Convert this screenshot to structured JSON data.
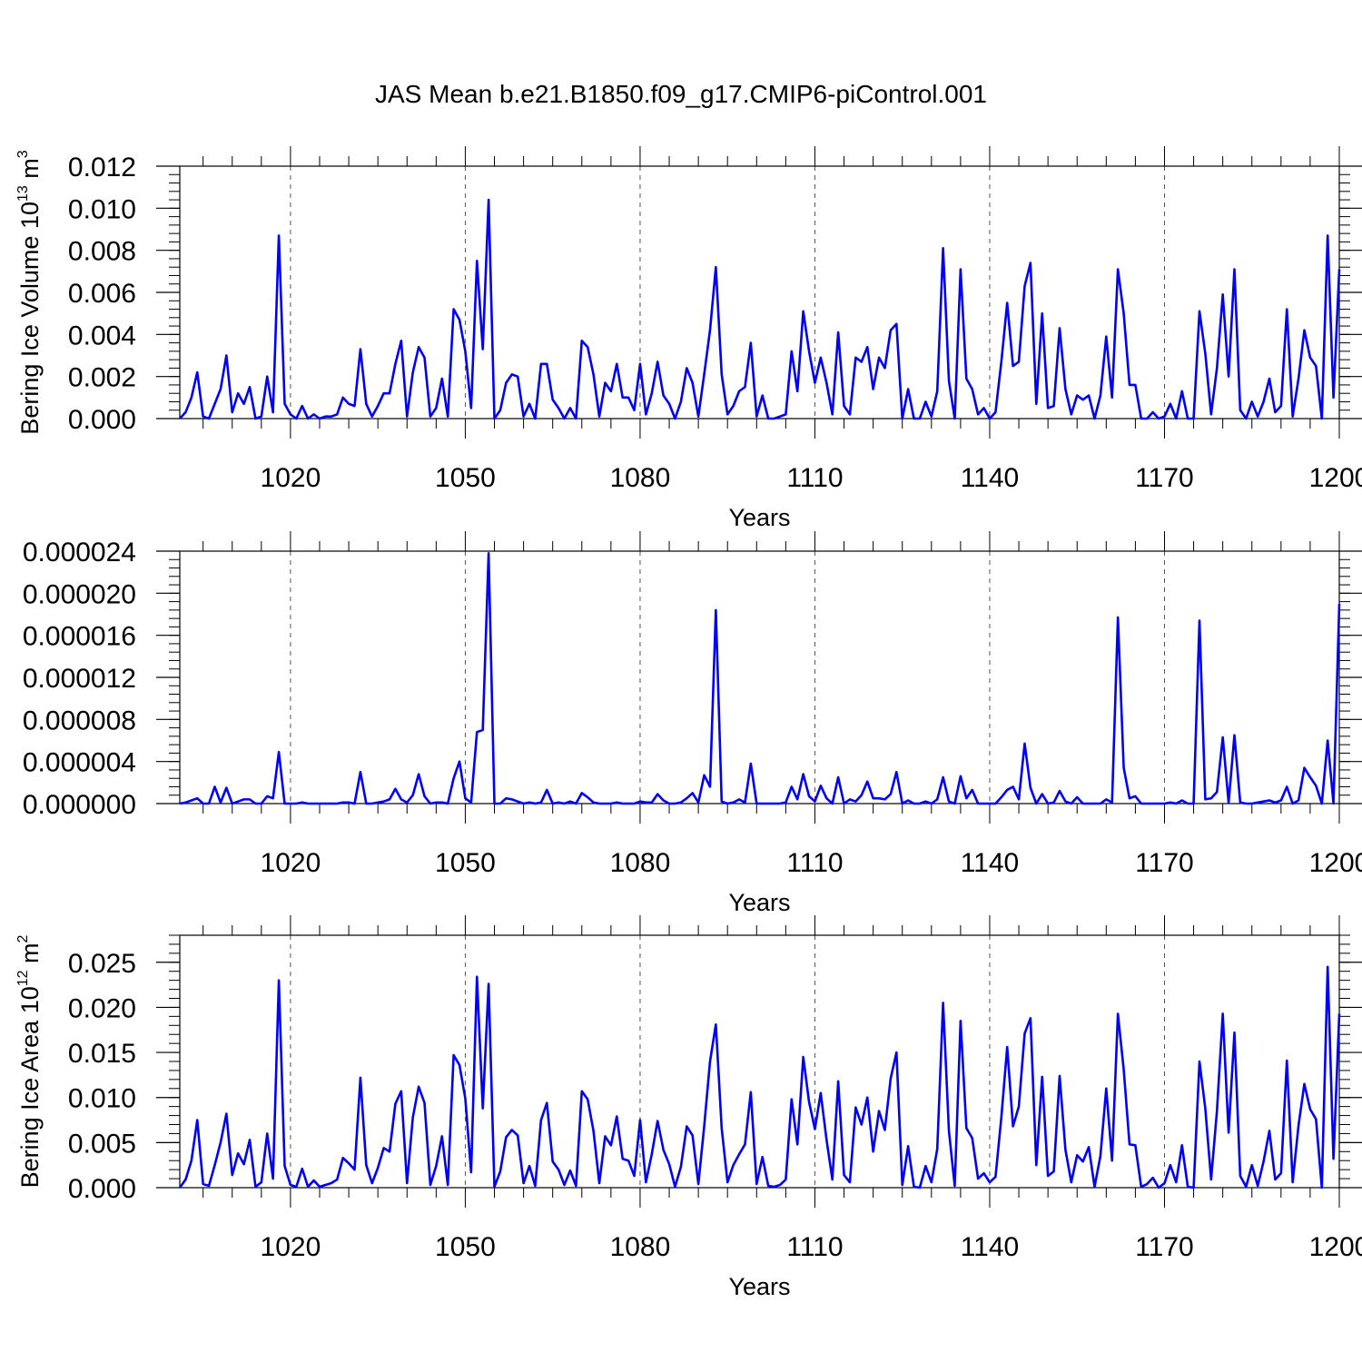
{
  "figure_title": "JAS Mean b.e21.B1850.f09_g17.CMIP6-piControl.001",
  "colors": {
    "line": "#0000ff",
    "axis": "#000000",
    "grid": "#555555"
  },
  "chart_data": [
    {
      "type": "line",
      "name": "ice-volume",
      "title": "",
      "xlabel": "Years",
      "ylabel_main": "Bering Ice Volume 10",
      "ylabel_sup": "13",
      "ylabel_unit": " m",
      "ylabel_unit_sup": "3",
      "xlim": [
        1001,
        1200
      ],
      "ylim": [
        0,
        0.012
      ],
      "yticks": [
        0.0,
        0.002,
        0.004,
        0.006,
        0.008,
        0.01,
        0.012
      ],
      "ytick_labels": [
        "0.000",
        "0.002",
        "0.004",
        "0.006",
        "0.008",
        "0.010",
        "0.012"
      ],
      "xticks": [
        1020,
        1050,
        1080,
        1110,
        1140,
        1170,
        1200
      ],
      "xtick_labels": [
        "1020",
        "1050",
        "1080",
        "1110",
        "1140",
        "1170",
        "1200"
      ],
      "gridlines_x": [
        1020,
        1050,
        1080,
        1110,
        1140,
        1170
      ],
      "x_start": 1001,
      "values": [
        0.0,
        0.0003,
        0.001,
        0.0022,
        0.0001,
        0.0,
        0.0007,
        0.0014,
        0.003,
        0.0003,
        0.0012,
        0.0007,
        0.0015,
        0.0,
        0.0001,
        0.002,
        0.0003,
        0.0087,
        0.0007,
        0.0002,
        0.0,
        0.0006,
        0.0,
        0.0002,
        0.0,
        0.0001,
        0.0001,
        0.0002,
        0.001,
        0.0007,
        0.0006,
        0.0033,
        0.0007,
        0.0001,
        0.0006,
        0.0012,
        0.0012,
        0.0026,
        0.0037,
        0.0001,
        0.0022,
        0.0034,
        0.0029,
        0.0001,
        0.0005,
        0.0019,
        0.0001,
        0.0052,
        0.0047,
        0.0032,
        0.0005,
        0.0075,
        0.0033,
        0.0104,
        0.0,
        0.0004,
        0.0017,
        0.0021,
        0.002,
        0.0001,
        0.0007,
        0.0,
        0.0026,
        0.0026,
        0.0009,
        0.0005,
        0.0,
        0.0005,
        0.0,
        0.0037,
        0.0034,
        0.0021,
        0.0001,
        0.0017,
        0.0013,
        0.0026,
        0.001,
        0.001,
        0.0004,
        0.0026,
        0.0002,
        0.0012,
        0.0027,
        0.0011,
        0.0007,
        0.0,
        0.0008,
        0.0024,
        0.0017,
        0.0001,
        0.0021,
        0.0042,
        0.0072,
        0.0021,
        0.0002,
        0.0006,
        0.0013,
        0.0015,
        0.0036,
        0.0001,
        0.0011,
        0.0,
        0.0,
        0.0001,
        0.0002,
        0.0032,
        0.0013,
        0.0051,
        0.0032,
        0.0017,
        0.0029,
        0.0017,
        0.0002,
        0.0041,
        0.0006,
        0.0002,
        0.0029,
        0.0027,
        0.0034,
        0.0014,
        0.0029,
        0.0024,
        0.0042,
        0.0045,
        0.0,
        0.0014,
        0.0,
        0.0,
        0.0008,
        0.0001,
        0.0013,
        0.0081,
        0.0018,
        0.0,
        0.0071,
        0.0019,
        0.0014,
        0.0002,
        0.0005,
        0.0,
        0.0003,
        0.0027,
        0.0055,
        0.0025,
        0.0027,
        0.0063,
        0.0074,
        0.0007,
        0.005,
        0.0005,
        0.0006,
        0.0043,
        0.0014,
        0.0002,
        0.0011,
        0.0009,
        0.0011,
        0.0,
        0.0011,
        0.0039,
        0.001,
        0.0071,
        0.005,
        0.0016,
        0.0016,
        0.0,
        0.0,
        0.0003,
        0.0,
        0.0001,
        0.0007,
        0.0,
        0.0013,
        0.0,
        0.0,
        0.0051,
        0.0031,
        0.0002,
        0.0024,
        0.0059,
        0.002,
        0.0071,
        0.0004,
        0.0,
        0.0008,
        0.0001,
        0.0008,
        0.0019,
        0.0003,
        0.0006,
        0.0052,
        0.0001,
        0.0019,
        0.0042,
        0.0029,
        0.0025,
        0.0,
        0.0087,
        0.001,
        0.0071
      ]
    },
    {
      "type": "line",
      "name": "ice-secondary",
      "title": "",
      "xlabel": "Years",
      "ylabel_main": "",
      "ylabel_sup": "",
      "ylabel_unit": "",
      "ylabel_unit_sup": "",
      "xlim": [
        1001,
        1200
      ],
      "ylim": [
        0,
        2.4e-05
      ],
      "yticks": [
        0.0,
        4e-06,
        8e-06,
        1.2e-05,
        1.6e-05,
        2e-05,
        2.4e-05
      ],
      "ytick_labels": [
        "0.000000",
        "0.000004",
        "0.000008",
        "0.000012",
        "0.000016",
        "0.000020",
        "0.000024"
      ],
      "xticks": [
        1020,
        1050,
        1080,
        1110,
        1140,
        1170,
        1200
      ],
      "xtick_labels": [
        "1020",
        "1050",
        "1080",
        "1110",
        "1140",
        "1170",
        "1200"
      ],
      "gridlines_x": [
        1020,
        1050,
        1080,
        1110,
        1140,
        1170
      ],
      "x_start": 1001,
      "values": [
        0.0,
        1e-07,
        3e-07,
        5e-07,
        0.0,
        0.0,
        1.6e-06,
        1e-07,
        1.5e-06,
        0.0,
        2e-07,
        4e-07,
        4e-07,
        0.0,
        0.0,
        7e-07,
        5e-07,
        4.9e-06,
        0.0,
        0.0,
        0.0,
        1e-07,
        0.0,
        0.0,
        0.0,
        0.0,
        0.0,
        0.0,
        1e-07,
        1e-07,
        0.0,
        3e-06,
        0.0,
        0.0,
        1e-07,
        2e-07,
        4e-07,
        1.4e-06,
        4e-07,
        1e-07,
        8e-07,
        2.8e-06,
        7e-07,
        0.0,
        1e-07,
        1e-07,
        0.0,
        2.4e-06,
        4e-06,
        5e-07,
        1e-07,
        6.8e-06,
        7e-06,
        2.38e-05,
        0.0,
        0.0,
        5e-07,
        4e-07,
        2e-07,
        0.0,
        1e-07,
        0.0,
        1e-07,
        1.3e-06,
        0.0,
        1e-07,
        0.0,
        2e-07,
        0.0,
        1e-06,
        6e-07,
        1e-07,
        0.0,
        0.0,
        0.0,
        1e-07,
        0.0,
        0.0,
        0.0,
        2e-07,
        1e-07,
        1e-07,
        9e-07,
        3e-07,
        0.0,
        0.0,
        1e-07,
        5e-07,
        1e-06,
        1e-07,
        2.7e-06,
        1.6e-06,
        1.84e-05,
        2e-07,
        0.0,
        1e-07,
        4e-07,
        1e-07,
        3.8e-06,
        0.0,
        0.0,
        0.0,
        0.0,
        0.0,
        1e-07,
        1.6e-06,
        4e-07,
        2.8e-06,
        7e-07,
        2e-07,
        1.7e-06,
        5e-07,
        0.0,
        2.5e-06,
        0.0,
        4e-07,
        2e-07,
        8e-07,
        2.1e-06,
        5e-07,
        5e-07,
        4e-07,
        9e-07,
        3e-06,
        0.0,
        3e-07,
        0.0,
        0.0,
        2e-07,
        0.0,
        4e-07,
        2.5e-06,
        2e-07,
        0.0,
        2.6e-06,
        5e-07,
        1.3e-06,
        0.0,
        0.0,
        0.0,
        0.0,
        6e-07,
        1.3e-06,
        1.6e-06,
        4e-07,
        5.7e-06,
        1.5e-06,
        0.0,
        9e-07,
        0.0,
        1e-07,
        1.2e-06,
        2e-07,
        0.0,
        6e-07,
        0.0,
        0.0,
        0.0,
        0.0,
        4e-07,
        1e-07,
        1.77e-05,
        3.4e-06,
        5e-07,
        7e-07,
        0.0,
        0.0,
        0.0,
        0.0,
        0.0,
        1e-07,
        0.0,
        3e-07,
        0.0,
        0.0,
        1.74e-05,
        4e-07,
        5e-07,
        1.1e-06,
        6.3e-06,
        1e-07,
        6.5e-06,
        1e-07,
        0.0,
        0.0,
        1e-07,
        2e-07,
        3e-07,
        1e-07,
        3e-07,
        1.6e-06,
        0.0,
        3e-07,
        3.4e-06,
        2.5e-06,
        1.7e-06,
        0.0,
        6e-06,
        0.0,
        1.9e-05
      ]
    },
    {
      "type": "line",
      "name": "ice-area",
      "title": "",
      "xlabel": "Years",
      "ylabel_main": "Bering Ice Area 10",
      "ylabel_sup": "12",
      "ylabel_unit": " m",
      "ylabel_unit_sup": "2",
      "xlim": [
        1001,
        1200
      ],
      "ylim": [
        0,
        0.028
      ],
      "yticks": [
        0.0,
        0.005,
        0.01,
        0.015,
        0.02,
        0.025
      ],
      "ytick_labels": [
        "0.000",
        "0.005",
        "0.010",
        "0.015",
        "0.020",
        "0.025"
      ],
      "xticks": [
        1020,
        1050,
        1080,
        1110,
        1140,
        1170,
        1200
      ],
      "xtick_labels": [
        "1020",
        "1050",
        "1080",
        "1110",
        "1140",
        "1170",
        "1200"
      ],
      "gridlines_x": [
        1020,
        1050,
        1080,
        1110,
        1140,
        1170
      ],
      "x_start": 1001,
      "values": [
        0.0,
        0.0009,
        0.003,
        0.0075,
        0.0004,
        0.0002,
        0.0025,
        0.005,
        0.0082,
        0.0014,
        0.0038,
        0.0026,
        0.0053,
        0.0001,
        0.0006,
        0.006,
        0.001,
        0.023,
        0.0024,
        0.0003,
        0.0001,
        0.0021,
        0.0001,
        0.0008,
        0.0001,
        0.0003,
        0.0005,
        0.0009,
        0.0033,
        0.0027,
        0.002,
        0.0122,
        0.0025,
        0.0005,
        0.0022,
        0.0044,
        0.004,
        0.0093,
        0.0107,
        0.0005,
        0.0078,
        0.0112,
        0.0094,
        0.0003,
        0.0024,
        0.0057,
        0.0003,
        0.0147,
        0.0136,
        0.0099,
        0.0017,
        0.0234,
        0.0088,
        0.0226,
        0.0001,
        0.0018,
        0.0056,
        0.0064,
        0.0058,
        0.0005,
        0.0024,
        0.0002,
        0.0075,
        0.0094,
        0.0029,
        0.002,
        0.0003,
        0.0019,
        0.0002,
        0.0107,
        0.0098,
        0.0063,
        0.0005,
        0.0057,
        0.0047,
        0.0079,
        0.0032,
        0.003,
        0.0013,
        0.0075,
        0.0006,
        0.0037,
        0.0074,
        0.0042,
        0.0026,
        0.0001,
        0.0023,
        0.0068,
        0.0058,
        0.0004,
        0.0068,
        0.014,
        0.0181,
        0.0066,
        0.0006,
        0.0025,
        0.0037,
        0.0048,
        0.0106,
        0.0004,
        0.0034,
        0.0002,
        0.0001,
        0.0003,
        0.0009,
        0.0098,
        0.0048,
        0.0145,
        0.0095,
        0.0065,
        0.0105,
        0.0053,
        0.0009,
        0.0118,
        0.0014,
        0.0006,
        0.0089,
        0.007,
        0.01,
        0.004,
        0.0085,
        0.0064,
        0.0121,
        0.015,
        0.0003,
        0.0046,
        0.0001,
        0.0,
        0.0024,
        0.0006,
        0.0043,
        0.0205,
        0.0063,
        0.0002,
        0.0185,
        0.0066,
        0.0055,
        0.001,
        0.0016,
        0.0006,
        0.0012,
        0.0078,
        0.0156,
        0.0068,
        0.009,
        0.0171,
        0.0188,
        0.0025,
        0.0123,
        0.0013,
        0.0018,
        0.0124,
        0.0042,
        0.0006,
        0.0036,
        0.0029,
        0.0045,
        0.0001,
        0.0035,
        0.011,
        0.003,
        0.0193,
        0.0131,
        0.0048,
        0.0047,
        0.0001,
        0.0004,
        0.0011,
        0.0,
        0.0005,
        0.0025,
        0.0006,
        0.0047,
        0.0001,
        0.0,
        0.014,
        0.0088,
        0.0009,
        0.0085,
        0.0193,
        0.0061,
        0.0172,
        0.0013,
        0.0001,
        0.0025,
        0.0002,
        0.0029,
        0.0063,
        0.0009,
        0.0016,
        0.0141,
        0.0006,
        0.0069,
        0.0115,
        0.0087,
        0.0076,
        0.0,
        0.0245,
        0.0032,
        0.0193
      ]
    }
  ]
}
